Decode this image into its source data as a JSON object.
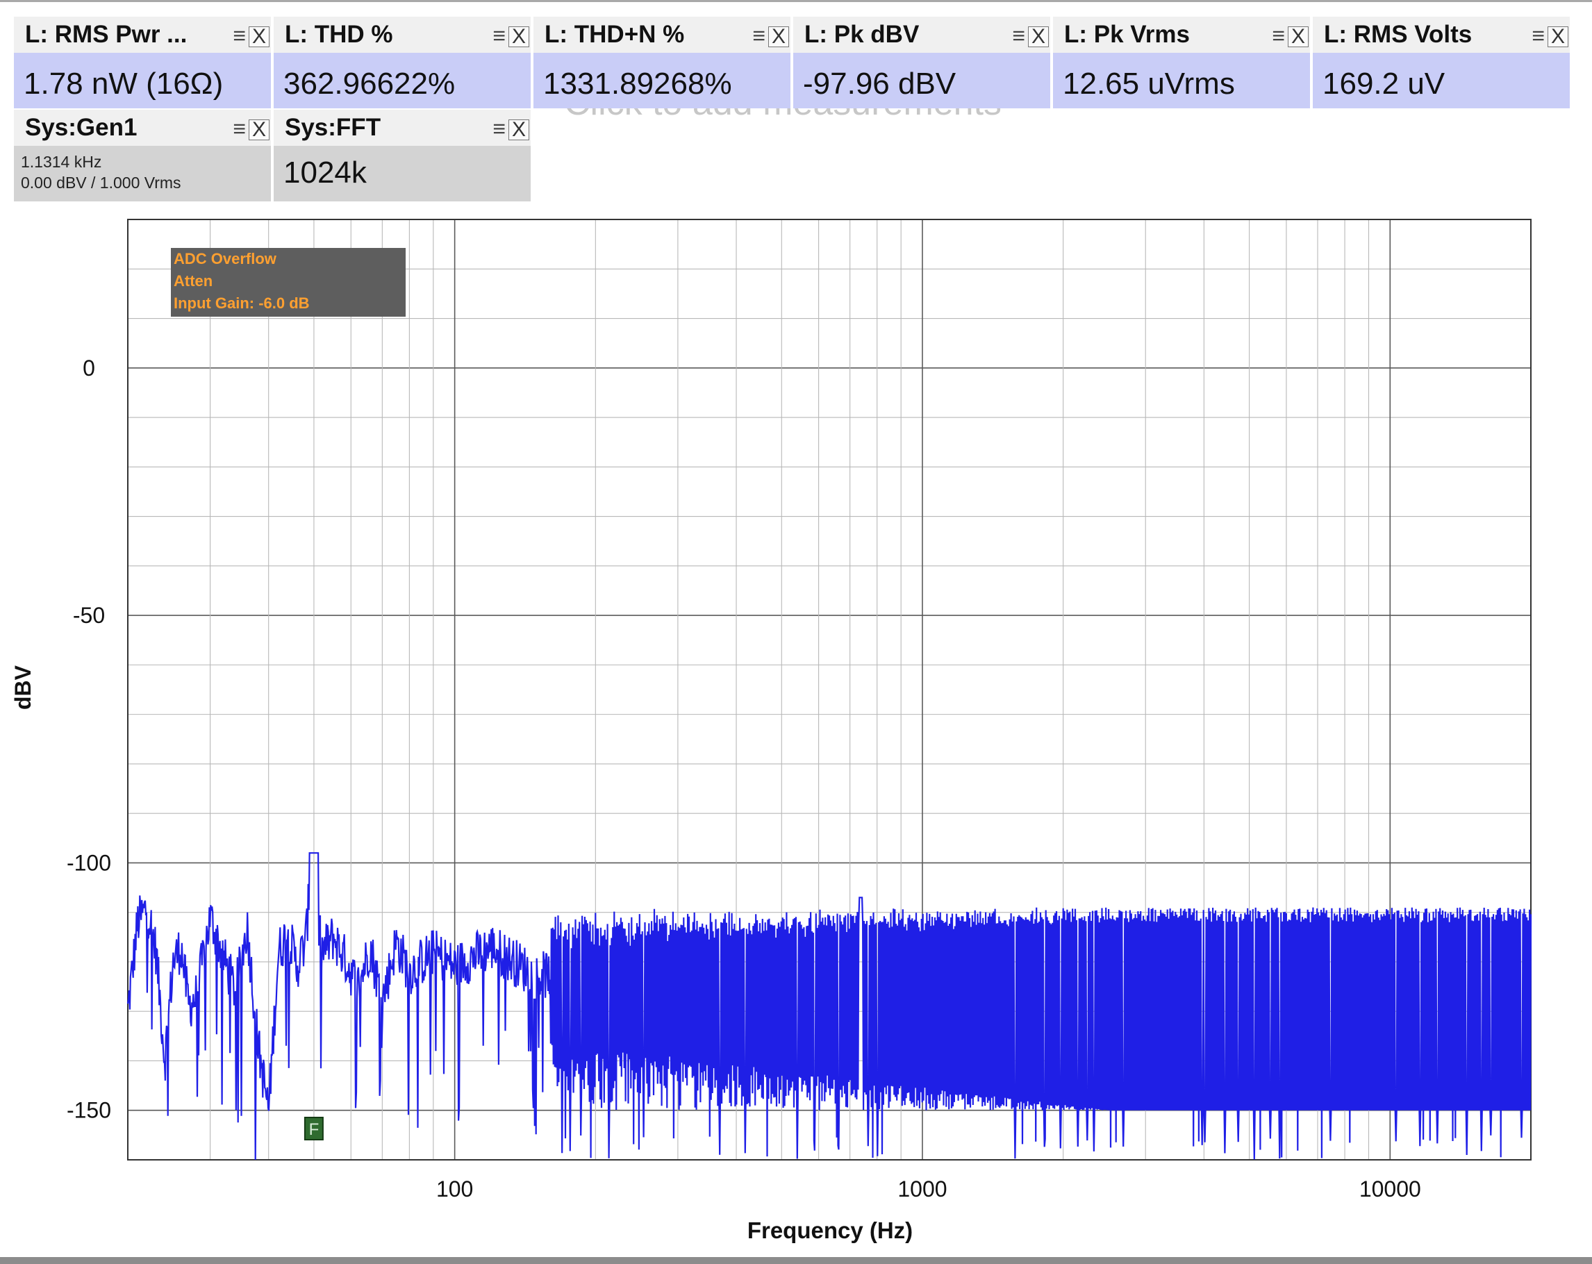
{
  "measurement_panel": {
    "hint": "Click to add measurements",
    "tiles": [
      {
        "title": "L: RMS Pwr ...",
        "value": "1.78 nW (16Ω)"
      },
      {
        "title": "L: THD %",
        "value": "362.96622%"
      },
      {
        "title": "L: THD+N %",
        "value": "1331.89268%"
      },
      {
        "title": "L: Pk dBV",
        "value": "-97.96 dBV"
      },
      {
        "title": "L: Pk Vrms",
        "value": "12.65 uVrms"
      },
      {
        "title": "L: RMS Volts",
        "value": "169.2 uV"
      }
    ],
    "menu_icon": "≡",
    "close_icon": "X",
    "generator": {
      "title": "Sys:Gen1",
      "frequency": "1.1314 kHz",
      "level": "0.00 dBV  / 1.000 Vrms"
    },
    "fft": {
      "title": "Sys:FFT",
      "value": "1024k"
    }
  },
  "status_box": [
    "ADC Overflow",
    "Atten",
    "Input Gain: -6.0 dB"
  ],
  "marker_label": "F",
  "colors": {
    "trace": "#1f1fe6",
    "status_bg": "#5e5e5e",
    "status_text": "#ffa030",
    "marker": "#2f6b2f",
    "value_bg": "#c9cdf7"
  },
  "chart_data": {
    "type": "line",
    "title": "",
    "xlabel": "Frequency (Hz)",
    "ylabel": "dBV",
    "x_scale": "log",
    "xlim": [
      20,
      20000
    ],
    "ylim": [
      -160,
      30
    ],
    "x_ticks": [
      100,
      1000,
      10000
    ],
    "x_tick_labels": [
      "100",
      "1000",
      "10000"
    ],
    "y_ticks": [
      0,
      -50,
      -100,
      -150
    ],
    "y_tick_labels": [
      "0",
      "-50",
      "-100",
      "-150"
    ],
    "grid": true,
    "marker_frequency_hz": 50,
    "series": [
      {
        "x": [
          20,
          21,
          22,
          23,
          24,
          25,
          26,
          27,
          28,
          30,
          32,
          34,
          36,
          38,
          40,
          42,
          44,
          46,
          48,
          49,
          50,
          51,
          52,
          55,
          58,
          62,
          66,
          70,
          75,
          80,
          90,
          100,
          120,
          150,
          200,
          300,
          500,
          700,
          738,
          1000,
          2000,
          5000,
          10000,
          20000
        ],
        "values": [
          -130,
          -112,
          -109,
          -118,
          -140,
          -120,
          -117,
          -129,
          -127,
          -111,
          -119,
          -126,
          -113,
          -137,
          -150,
          -118,
          -114,
          -121,
          -116,
          -105,
          -98,
          -112,
          -118,
          -115,
          -119,
          -125,
          -117,
          -128,
          -116,
          -122,
          -118,
          -121,
          -117,
          -123,
          -120,
          -122,
          -119,
          -121,
          -107,
          -120,
          -121,
          -121,
          -121,
          -121
        ]
      }
    ],
    "noise_floor_note": "",
    "noise_band_top": -112,
    "noise_band_bottom": -150
  }
}
